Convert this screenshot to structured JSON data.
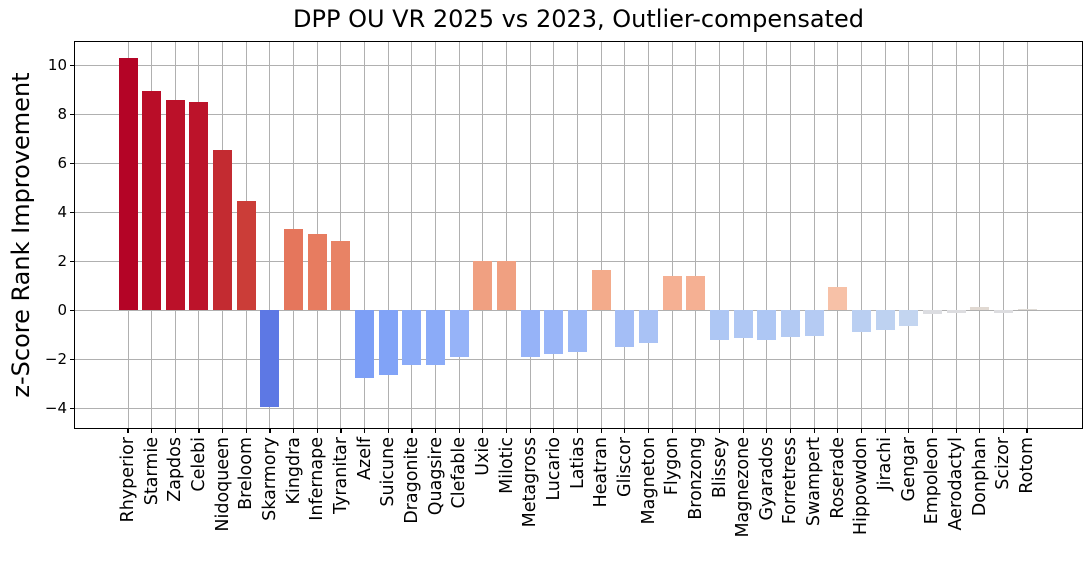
{
  "chart_data": {
    "type": "bar",
    "title": "DPP OU VR 2025 vs 2023, Outlier-compensated",
    "ylabel": "z-Score Rank Improvement",
    "xlabel": "",
    "colormap": "coolwarm",
    "grid": true,
    "grid_color": "#b0b0b0",
    "background": "#ffffff",
    "ylim": [
      -4.85,
      11.0
    ],
    "yticks": [
      10,
      8,
      6,
      4,
      2,
      0,
      -2,
      -4
    ],
    "ytick_labels": [
      "10",
      "8",
      "6",
      "4",
      "2",
      "0",
      "−2",
      "−4"
    ],
    "categories": [
      "Rhyperior",
      "Starmie",
      "Zapdos",
      "Celebi",
      "Nidoqueen",
      "Breloom",
      "Skarmory",
      "Kingdra",
      "Infernape",
      "Tyranitar",
      "Azelf",
      "Suicune",
      "Dragonite",
      "Quagsire",
      "Clefable",
      "Uxie",
      "Milotic",
      "Metagross",
      "Lucario",
      "Latias",
      "Heatran",
      "Gliscor",
      "Magneton",
      "Flygon",
      "Bronzong",
      "Blissey",
      "Magnezone",
      "Gyarados",
      "Forretress",
      "Swampert",
      "Roserade",
      "Hippowdon",
      "Jirachi",
      "Gengar",
      "Empoleon",
      "Aerodactyl",
      "Donphan",
      "Scizor",
      "Rotom"
    ],
    "values": [
      10.3,
      8.95,
      8.6,
      8.5,
      6.55,
      4.45,
      -3.95,
      3.3,
      3.1,
      2.85,
      -2.75,
      -2.65,
      -2.25,
      -2.25,
      -1.9,
      2.0,
      2.0,
      -1.9,
      -1.8,
      -1.7,
      1.65,
      -1.5,
      -1.35,
      1.4,
      1.4,
      -1.2,
      -1.15,
      -1.2,
      -1.1,
      -1.05,
      0.95,
      -0.9,
      -0.8,
      -0.65,
      -0.15,
      -0.1,
      0.15,
      -0.1,
      0.05
    ],
    "bar_colors": [
      "#b40426",
      "#b90d28",
      "#bb1129",
      "#bc132a",
      "#c32b31",
      "#cb3d38",
      "#5d78e4",
      "#e5765c",
      "#e77c60",
      "#e88365",
      "#7d9ff6",
      "#81a3f7",
      "#8babf8",
      "#8babf8",
      "#96b3f8",
      "#f0a081",
      "#f0a081",
      "#96b3f8",
      "#99b5f8",
      "#9db9f7",
      "#f3ab8b",
      "#a4bef6",
      "#a9c2f5",
      "#f5b093",
      "#f5b093",
      "#aec7f4",
      "#b0c8f4",
      "#aec7f4",
      "#b3caf3",
      "#b5cbf3",
      "#f7c1a7",
      "#bacff2",
      "#bed2f1",
      "#c3d5f0",
      "#dcdde1",
      "#dddde0",
      "#e1d9d2",
      "#dddde0",
      "#dfdbd6"
    ]
  }
}
